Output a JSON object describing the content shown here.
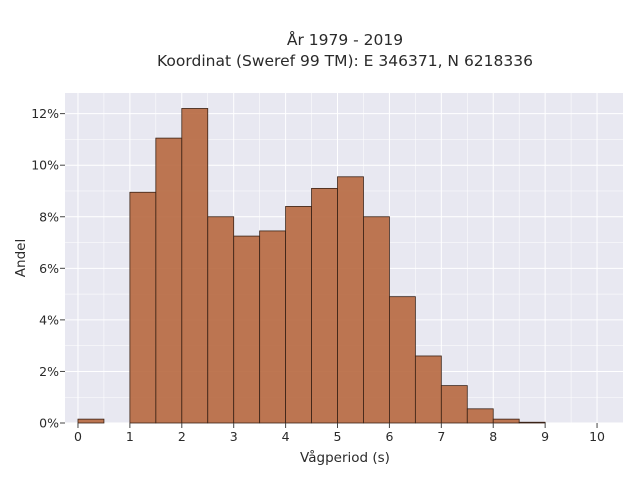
{
  "chart_data": {
    "type": "bar",
    "title_line1": "År 1979 - 2019",
    "title_line2": "Koordinat (Sweref 99 TM): E 346371, N 6218336",
    "xlabel": "Vågperiod (s)",
    "ylabel": "Andel",
    "xlim": [
      -0.25,
      10.5
    ],
    "ylim": [
      0,
      12.8
    ],
    "x_ticks": [
      0,
      1,
      2,
      3,
      4,
      5,
      6,
      7,
      8,
      9,
      10
    ],
    "x_tick_labels": [
      "0",
      "1",
      "2",
      "3",
      "4",
      "5",
      "6",
      "7",
      "8",
      "9",
      "10"
    ],
    "y_ticks": [
      0,
      2,
      4,
      6,
      8,
      10,
      12
    ],
    "y_tick_labels": [
      "0%",
      "2%",
      "4%",
      "6%",
      "8%",
      "10%",
      "12%"
    ],
    "bin_width": 0.5,
    "bin_starts": [
      0,
      0.5,
      1,
      1.5,
      2,
      2.5,
      3,
      3.5,
      4,
      4.5,
      5,
      5.5,
      6,
      6.5,
      7,
      7.5,
      8,
      8.5,
      9,
      9.5
    ],
    "values": [
      0.15,
      0.0,
      8.95,
      11.05,
      12.2,
      8.0,
      7.25,
      7.45,
      8.4,
      9.1,
      9.55,
      8.0,
      4.9,
      2.6,
      1.45,
      0.55,
      0.15,
      0.03,
      0.0,
      0.0
    ],
    "unit": "%",
    "grid": true,
    "bar_color": "#b5643a",
    "bar_edge_color": "#3a2216",
    "plot_background": "#e8e8f1",
    "grid_color": "#ffffff"
  }
}
